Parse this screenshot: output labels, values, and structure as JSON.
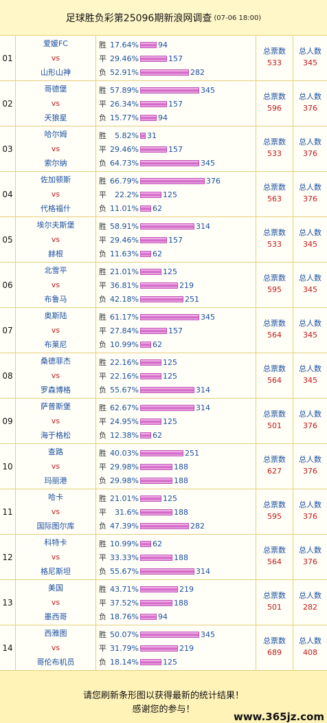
{
  "header": {
    "title": "足球胜负彩第25096期新浪网调查",
    "time": "(07-06 18:00)"
  },
  "labels": {
    "win": "胜",
    "draw": "平",
    "loss": "负",
    "vs": "vs",
    "total_votes": "总票数",
    "total_people": "总人数"
  },
  "colors": {
    "link": "#1a4fa0",
    "accent": "#c01818",
    "bar": "#d05cc4"
  },
  "bar_scale_max": 400,
  "matches": [
    {
      "num": "01",
      "home": "爱媛FC",
      "away": "山形山神",
      "win": {
        "pct": "17.64%",
        "cnt": 94
      },
      "draw": {
        "pct": "29.46%",
        "cnt": 157
      },
      "loss": {
        "pct": "52.91%",
        "cnt": 282
      },
      "votes": "533",
      "people": "345"
    },
    {
      "num": "02",
      "home": "哥德堡",
      "away": "天狼星",
      "win": {
        "pct": "57.89%",
        "cnt": 345
      },
      "draw": {
        "pct": "26.34%",
        "cnt": 157
      },
      "loss": {
        "pct": "15.77%",
        "cnt": 94
      },
      "votes": "596",
      "people": "376"
    },
    {
      "num": "03",
      "home": "哈尔姆",
      "away": "索尔纳",
      "win": {
        "pct": "5.82%",
        "cnt": 31
      },
      "draw": {
        "pct": "29.46%",
        "cnt": 157
      },
      "loss": {
        "pct": "64.73%",
        "cnt": 345
      },
      "votes": "533",
      "people": "376"
    },
    {
      "num": "04",
      "home": "佐加顿斯",
      "away": "代格福什",
      "win": {
        "pct": "66.79%",
        "cnt": 376
      },
      "draw": {
        "pct": "22.2%",
        "cnt": 125
      },
      "loss": {
        "pct": "11.01%",
        "cnt": 62
      },
      "votes": "563",
      "people": "376"
    },
    {
      "num": "05",
      "home": "埃尔夫斯堡",
      "away": "赫根",
      "win": {
        "pct": "58.91%",
        "cnt": 314
      },
      "draw": {
        "pct": "29.46%",
        "cnt": 157
      },
      "loss": {
        "pct": "11.63%",
        "cnt": 62
      },
      "votes": "533",
      "people": "345"
    },
    {
      "num": "06",
      "home": "北雪平",
      "away": "布鲁马",
      "win": {
        "pct": "21.01%",
        "cnt": 125
      },
      "draw": {
        "pct": "36.81%",
        "cnt": 219
      },
      "loss": {
        "pct": "42.18%",
        "cnt": 251
      },
      "votes": "595",
      "people": "345"
    },
    {
      "num": "07",
      "home": "奥斯陆",
      "away": "布莱尼",
      "win": {
        "pct": "61.17%",
        "cnt": 345
      },
      "draw": {
        "pct": "27.84%",
        "cnt": 157
      },
      "loss": {
        "pct": "10.99%",
        "cnt": 62
      },
      "votes": "564",
      "people": "345"
    },
    {
      "num": "08",
      "home": "桑德菲杰",
      "away": "罗森博格",
      "win": {
        "pct": "22.16%",
        "cnt": 125
      },
      "draw": {
        "pct": "22.16%",
        "cnt": 125
      },
      "loss": {
        "pct": "55.67%",
        "cnt": 314
      },
      "votes": "564",
      "people": "345"
    },
    {
      "num": "09",
      "home": "萨普斯堡",
      "away": "海于格松",
      "win": {
        "pct": "62.67%",
        "cnt": 314
      },
      "draw": {
        "pct": "24.95%",
        "cnt": 125
      },
      "loss": {
        "pct": "12.38%",
        "cnt": 62
      },
      "votes": "501",
      "people": "376"
    },
    {
      "num": "10",
      "home": "查路",
      "away": "玛丽港",
      "win": {
        "pct": "40.03%",
        "cnt": 251
      },
      "draw": {
        "pct": "29.98%",
        "cnt": 188
      },
      "loss": {
        "pct": "29.98%",
        "cnt": 188
      },
      "votes": "627",
      "people": "376"
    },
    {
      "num": "11",
      "home": "哈卡",
      "away": "国际图尔库",
      "win": {
        "pct": "21.01%",
        "cnt": 125
      },
      "draw": {
        "pct": "31.6%",
        "cnt": 188
      },
      "loss": {
        "pct": "47.39%",
        "cnt": 282
      },
      "votes": "595",
      "people": "376"
    },
    {
      "num": "12",
      "home": "科特卡",
      "away": "格尼斯坦",
      "win": {
        "pct": "10.99%",
        "cnt": 62
      },
      "draw": {
        "pct": "33.33%",
        "cnt": 188
      },
      "loss": {
        "pct": "55.67%",
        "cnt": 314
      },
      "votes": "564",
      "people": "376"
    },
    {
      "num": "13",
      "home": "美国",
      "away": "墨西哥",
      "win": {
        "pct": "43.71%",
        "cnt": 219
      },
      "draw": {
        "pct": "37.52%",
        "cnt": 188
      },
      "loss": {
        "pct": "18.76%",
        "cnt": 94
      },
      "votes": "501",
      "people": "282"
    },
    {
      "num": "14",
      "home": "西雅图",
      "away": "哥伦布机员",
      "win": {
        "pct": "50.07%",
        "cnt": 345
      },
      "draw": {
        "pct": "31.79%",
        "cnt": 219
      },
      "loss": {
        "pct": "18.14%",
        "cnt": 125
      },
      "votes": "689",
      "people": "408"
    }
  ],
  "footer": {
    "line1": "请您刷新条形图以获得最新的统计结果！",
    "line2": "感谢您的参与！",
    "watermark": "www.365jz.com"
  }
}
